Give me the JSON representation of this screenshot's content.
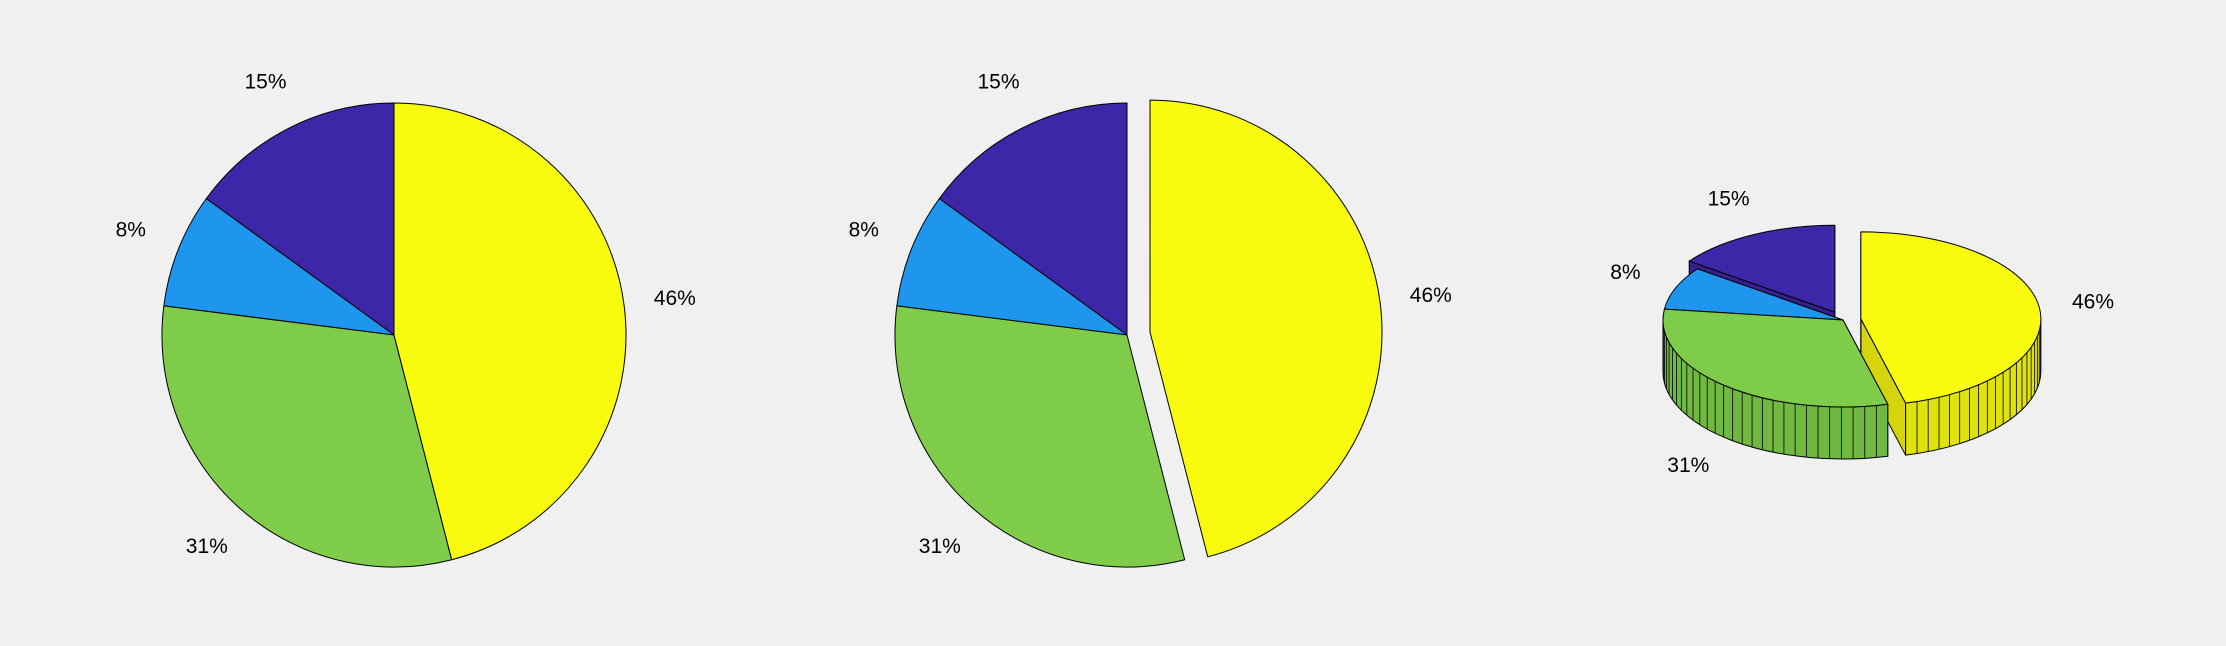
{
  "colors": {
    "background": "#f0f0f0",
    "edge": "#000000"
  },
  "chart_data": [
    {
      "type": "pie",
      "variant": "2d",
      "title": "",
      "slices": [
        {
          "label": "15%",
          "value": 15,
          "color": "#3e26a8"
        },
        {
          "label": "8%",
          "value": 8,
          "color": "#1f96ed"
        },
        {
          "label": "31%",
          "value": 31,
          "color": "#7ecc4a"
        },
        {
          "label": "46%",
          "value": 46,
          "color": "#f9fb0e"
        }
      ],
      "exploded": []
    },
    {
      "type": "pie",
      "variant": "2d",
      "title": "",
      "slices": [
        {
          "label": "15%",
          "value": 15,
          "color": "#3e26a8"
        },
        {
          "label": "8%",
          "value": 8,
          "color": "#1f96ed"
        },
        {
          "label": "31%",
          "value": 31,
          "color": "#7ecc4a"
        },
        {
          "label": "46%",
          "value": 46,
          "color": "#f9fb0e"
        }
      ],
      "exploded": [
        "46%"
      ]
    },
    {
      "type": "pie",
      "variant": "3d",
      "title": "",
      "slices": [
        {
          "label": "15%",
          "value": 15,
          "color": "#3e26a8"
        },
        {
          "label": "8%",
          "value": 8,
          "color": "#1f96ed"
        },
        {
          "label": "31%",
          "value": 31,
          "color": "#7ecc4a"
        },
        {
          "label": "46%",
          "value": 46,
          "color": "#f9fb0e"
        }
      ],
      "exploded": [
        "15%",
        "46%"
      ]
    }
  ]
}
